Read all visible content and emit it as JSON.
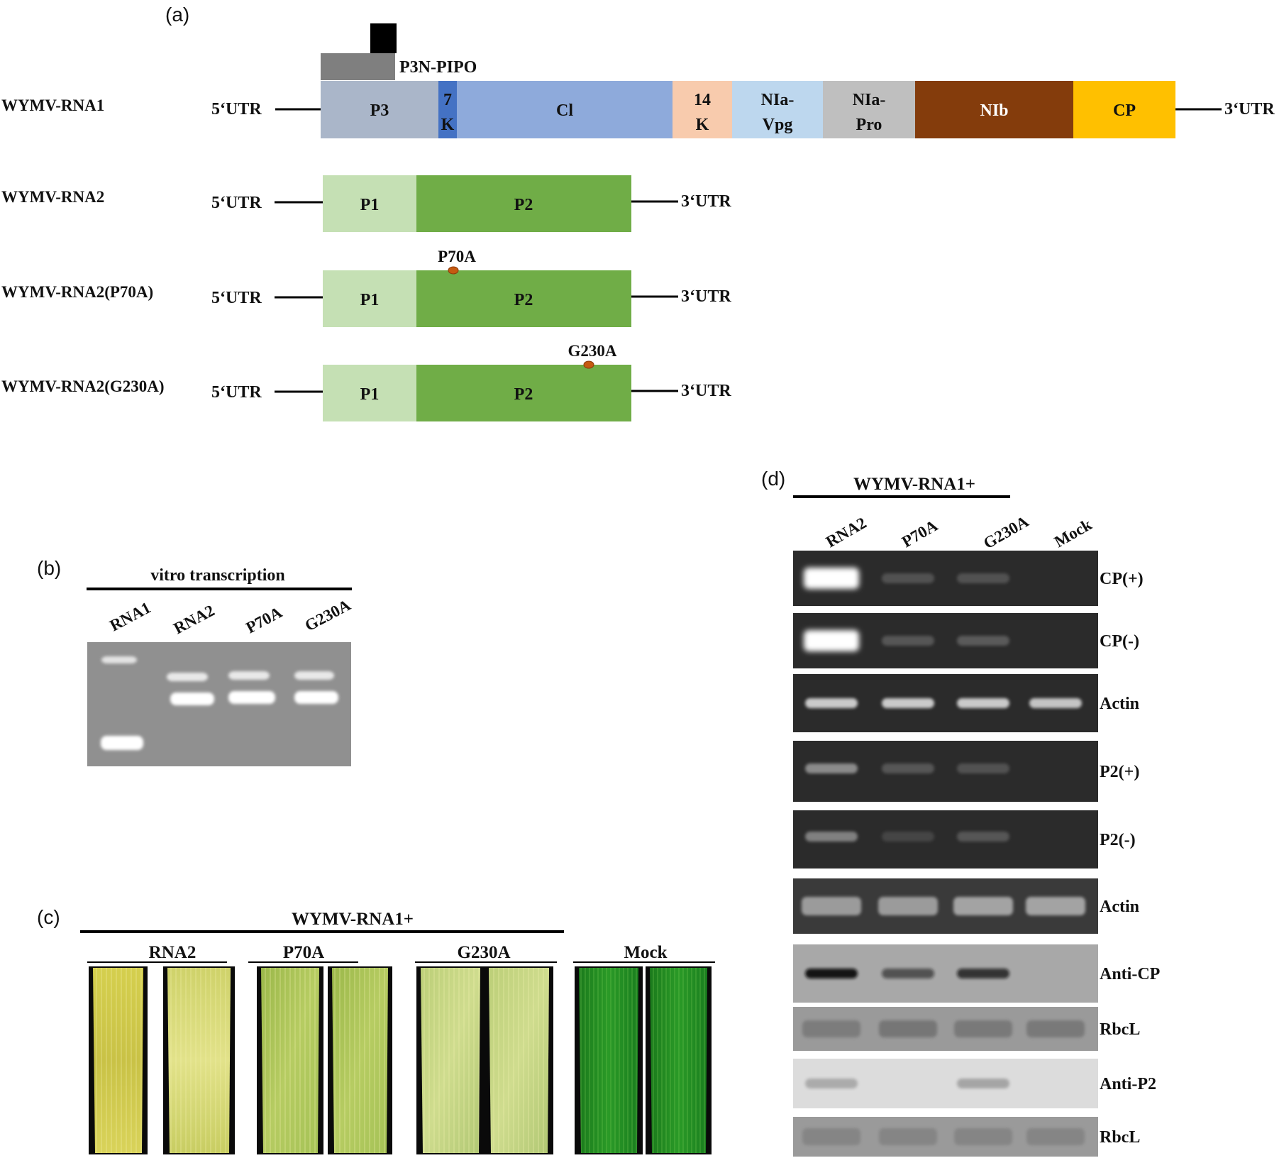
{
  "panels": {
    "a": "(a)",
    "b": "(b)",
    "c": "(c)",
    "d": "(d)"
  },
  "panel_a": {
    "p3n_pipo": "P3N-PIPO",
    "utr5": "5‘UTR",
    "utr3": "3‘UTR",
    "rna1": {
      "name": "WYMV-RNA1",
      "domains": [
        {
          "lines": [
            "P3"
          ],
          "color": "#aab6c9"
        },
        {
          "lines": [
            "7",
            "K"
          ],
          "color": "#4472c4"
        },
        {
          "lines": [
            "Cl"
          ],
          "color": "#8eaadb"
        },
        {
          "lines": [
            "14",
            "K"
          ],
          "color": "#f8cbad"
        },
        {
          "lines": [
            "NIa-",
            "Vpg"
          ],
          "color": "#bdd7ee"
        },
        {
          "lines": [
            "NIa-",
            "Pro"
          ],
          "color": "#bfbfbf"
        },
        {
          "lines": [
            "NIb"
          ],
          "color": "#843c0c"
        },
        {
          "lines": [
            "CP"
          ],
          "color": "#ffc000"
        }
      ]
    },
    "rna2": {
      "p1": "P1",
      "p2": "P2",
      "p1_color": "#c5e0b4",
      "p2_color": "#70ad47",
      "constructs": [
        {
          "name": "WYMV-RNA2",
          "mutation": ""
        },
        {
          "name": "WYMV-RNA2(P70A)",
          "mutation": "P70A"
        },
        {
          "name": "WYMV-RNA2(G230A)",
          "mutation": "G230A"
        }
      ]
    },
    "mutation_dot_color": "#c55a11"
  },
  "panel_b": {
    "header": "vitro transcription",
    "lanes": [
      "RNA1",
      "RNA2",
      "P70A",
      "G230A"
    ]
  },
  "panel_c": {
    "header": "WYMV-RNA1+",
    "groups": [
      "RNA2",
      "P70A",
      "G230A",
      "Mock"
    ]
  },
  "panel_d": {
    "header": "WYMV-RNA1+",
    "lanes": [
      "RNA2",
      "P70A",
      "G230A",
      "Mock"
    ],
    "blots": [
      {
        "label": "CP(+)",
        "style": "dark"
      },
      {
        "label": "CP(-)",
        "style": "dark"
      },
      {
        "label": "Actin",
        "style": "dark"
      },
      {
        "label": "P2(+)",
        "style": "dark"
      },
      {
        "label": "P2(-)",
        "style": "dark"
      },
      {
        "label": "Actin",
        "style": "grey"
      },
      {
        "label": "Anti-CP",
        "style": "western"
      },
      {
        "label": "RbcL",
        "style": "stain"
      },
      {
        "label": "Anti-P2",
        "style": "light"
      },
      {
        "label": "RbcL",
        "style": "stain"
      }
    ]
  }
}
